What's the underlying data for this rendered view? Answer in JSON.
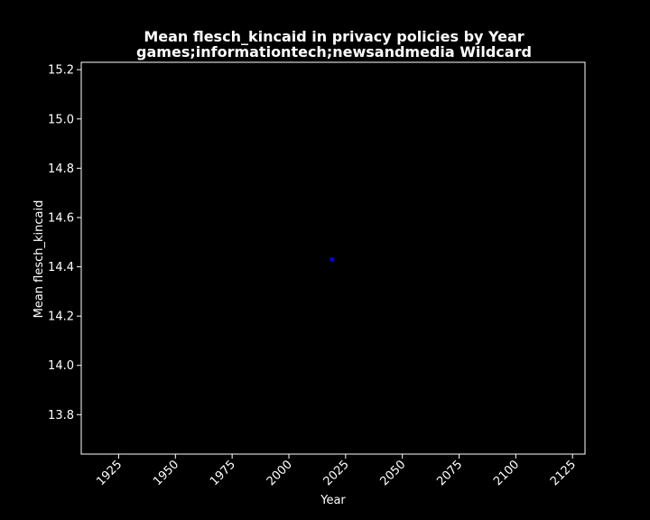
{
  "chart_data": {
    "type": "scatter",
    "title": "Mean flesch_kincaid in privacy policies by Year",
    "subtitle": "games;informationtech;newsandmedia Wildcard",
    "xlabel": "Year",
    "ylabel": "Mean flesch_kincaid",
    "xlim": [
      1908.5,
      2130.5
    ],
    "ylim": [
      13.64,
      15.23
    ],
    "x_ticks": [
      1925,
      1950,
      1975,
      2000,
      2025,
      2050,
      2075,
      2100,
      2125
    ],
    "y_ticks": [
      13.8,
      14.0,
      14.2,
      14.4,
      14.6,
      14.8,
      15.0,
      15.2
    ],
    "y_tick_labels": [
      "13.8",
      "14.0",
      "14.2",
      "14.4",
      "14.6",
      "14.8",
      "15.0",
      "15.2"
    ],
    "grid": false,
    "series": [
      {
        "x": [
          2019
        ],
        "y": [
          14.43
        ],
        "color": "#0000ff"
      }
    ],
    "colors": {
      "background": "#000000",
      "axes": "#ffffff",
      "text": "#ffffff",
      "point": "#0000ff"
    }
  }
}
